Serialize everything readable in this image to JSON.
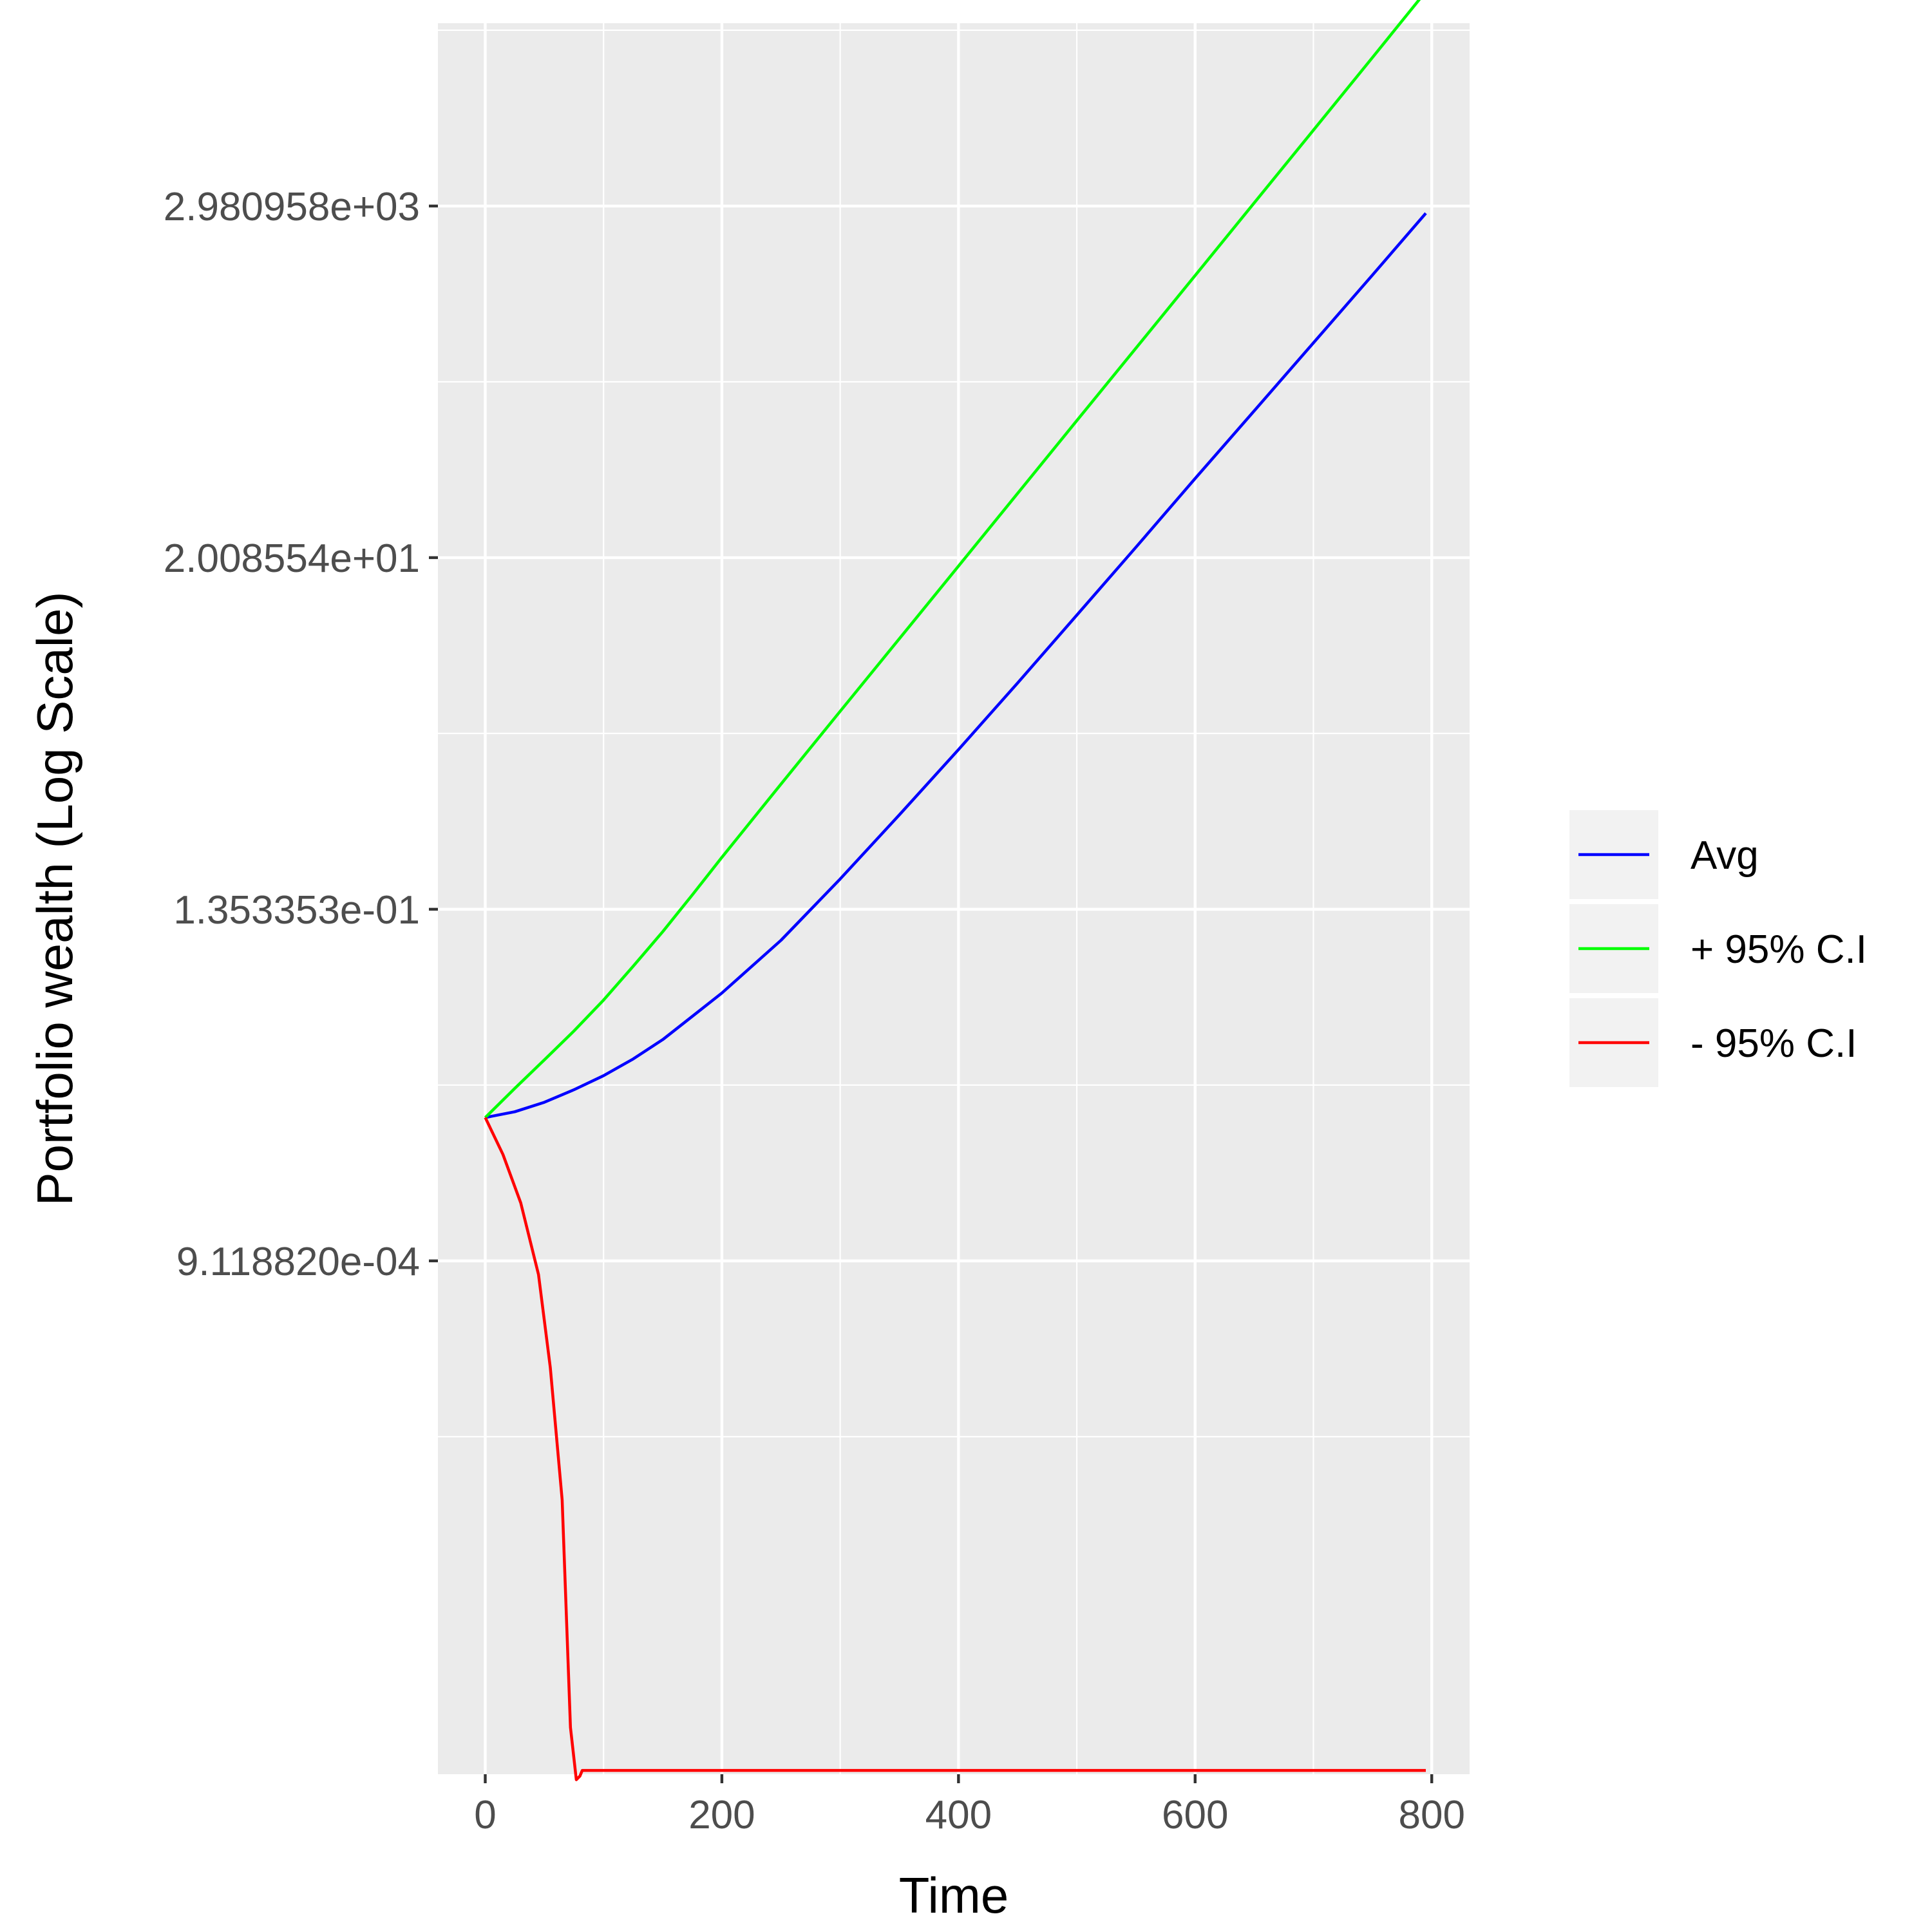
{
  "chart_data": {
    "type": "line",
    "xlabel": "Time",
    "ylabel": "Portfolio wealth (Log Scale)",
    "y_scale": "log",
    "xlim": [
      -40,
      832
    ],
    "ylim_ln": [
      -14.3,
      10.6
    ],
    "x_ticks": [
      {
        "value": 0,
        "label": "0"
      },
      {
        "value": 200,
        "label": "200"
      },
      {
        "value": 400,
        "label": "400"
      },
      {
        "value": 600,
        "label": "600"
      },
      {
        "value": 800,
        "label": "800"
      }
    ],
    "y_ticks": [
      {
        "value": 0.000911882,
        "label": "9.118820e-04"
      },
      {
        "value": 0.1353353,
        "label": "1.353353e-01"
      },
      {
        "value": 20.08554,
        "label": "2.008554e+01"
      },
      {
        "value": 2980.958,
        "label": "2.980958e+03"
      }
    ],
    "grid": true,
    "legend_position": "right",
    "series": [
      {
        "name": "Avg",
        "color": "#0000ff",
        "x": [
          0,
          25,
          50,
          75,
          100,
          125,
          150,
          175,
          200,
          250,
          300,
          350,
          400,
          450,
          500,
          550,
          600,
          650,
          700,
          750,
          795
        ],
        "y": [
          0.007,
          0.0076,
          0.0087,
          0.0104,
          0.0127,
          0.0161,
          0.0212,
          0.0295,
          0.0411,
          0.0871,
          0.208,
          0.518,
          1.31,
          3.38,
          8.87,
          23.3,
          61.9,
          162,
          426,
          1120,
          2690
        ]
      },
      {
        "name": "+ 95% C.I",
        "color": "#00ff00",
        "x": [
          0,
          25,
          50,
          75,
          100,
          125,
          150,
          175,
          200,
          250,
          300,
          350,
          400,
          450,
          500,
          550,
          600,
          650,
          700,
          750,
          795
        ],
        "y": [
          0.007,
          0.0106,
          0.0159,
          0.024,
          0.0372,
          0.0601,
          0.0984,
          0.166,
          0.283,
          0.803,
          2.26,
          6.34,
          17.8,
          50.1,
          141,
          395,
          1110,
          3120,
          8770,
          24700,
          63000
        ]
      },
      {
        "name": "- 95% C.I",
        "color": "#ff0000",
        "x": [
          0,
          15,
          30,
          45,
          55,
          65,
          72,
          77,
          80,
          82,
          100,
          200,
          300,
          400,
          500,
          600,
          700,
          795
        ],
        "y": [
          0.007,
          0.00414,
          0.00208,
          0.00075,
          0.0002,
          3.05e-05,
          1.2e-06,
          5.7e-07,
          6e-07,
          6.5e-07,
          6.5e-07,
          6.5e-07,
          6.5e-07,
          6.5e-07,
          6.5e-07,
          6.5e-07,
          6.5e-07,
          6.5e-07
        ]
      }
    ]
  }
}
